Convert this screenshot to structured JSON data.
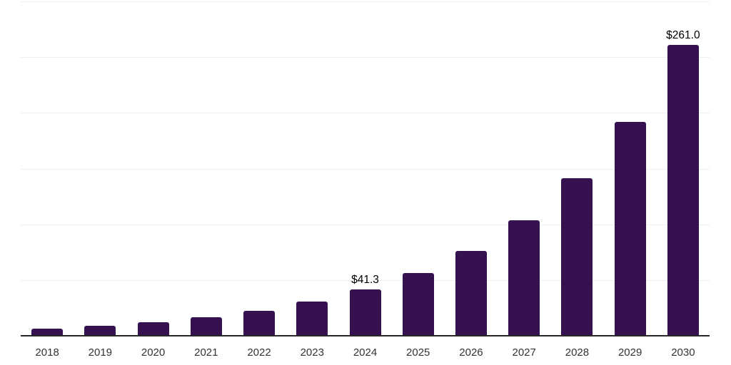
{
  "chart_data": {
    "type": "bar",
    "title": "",
    "xlabel": "",
    "ylabel": "",
    "categories": [
      "2018",
      "2019",
      "2020",
      "2021",
      "2022",
      "2023",
      "2024",
      "2025",
      "2026",
      "2027",
      "2028",
      "2029",
      "2030"
    ],
    "values": [
      6.5,
      8.9,
      12.2,
      16.6,
      22.4,
      30.4,
      41.3,
      56.2,
      76.4,
      103.9,
      141.3,
      192.2,
      261.0
    ],
    "data_labels": [
      null,
      null,
      null,
      null,
      null,
      null,
      "$41.3",
      null,
      null,
      null,
      null,
      null,
      "$261.0"
    ],
    "ylim": [
      0,
      300
    ],
    "gridline_step": 50,
    "grid": "horizontal-only",
    "legend_position": "none",
    "y_tick_labels_visible": false,
    "colors": {
      "bar": "#361150",
      "axis_line": "#262626",
      "gridline": "#efefef",
      "x_tick_label": "#333333",
      "value_label": "#000000",
      "background": "#ffffff"
    }
  }
}
